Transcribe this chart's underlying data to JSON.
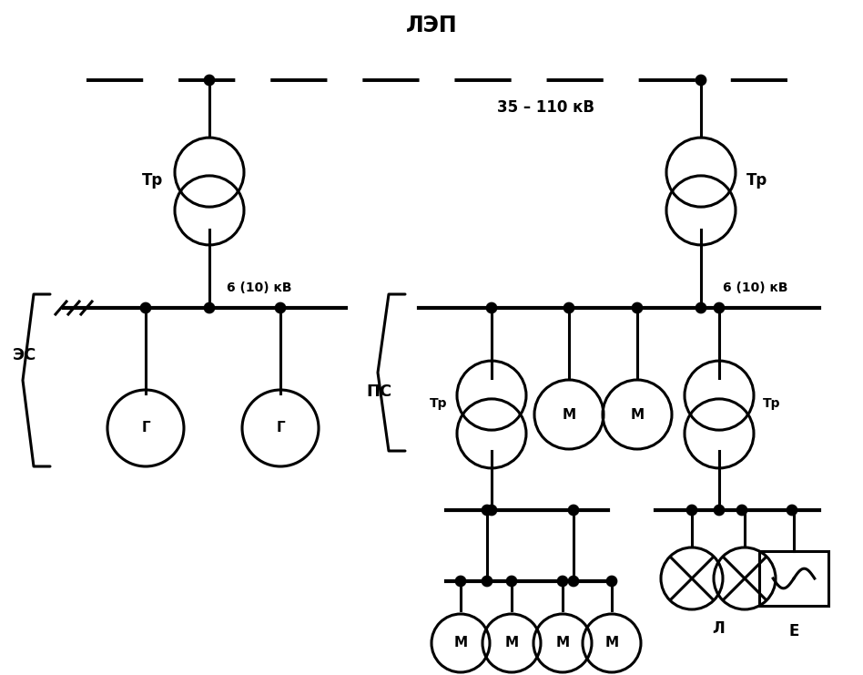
{
  "title": "ЛЭП",
  "subtitle": "35 – 110 кВ",
  "label_es": "ЭС",
  "label_ps": "ПС",
  "label_6kv": "6 (10) кВ",
  "label_tr": "Тр",
  "label_g": "Г",
  "label_m": "М",
  "label_l": "Л",
  "label_e": "Е",
  "bg_color": "#ffffff",
  "lw": 2.2,
  "lw_thick": 2.8,
  "lw_bus": 3.0,
  "dot_r": 0.006,
  "tr_r": 0.042,
  "unit_r": 0.038
}
